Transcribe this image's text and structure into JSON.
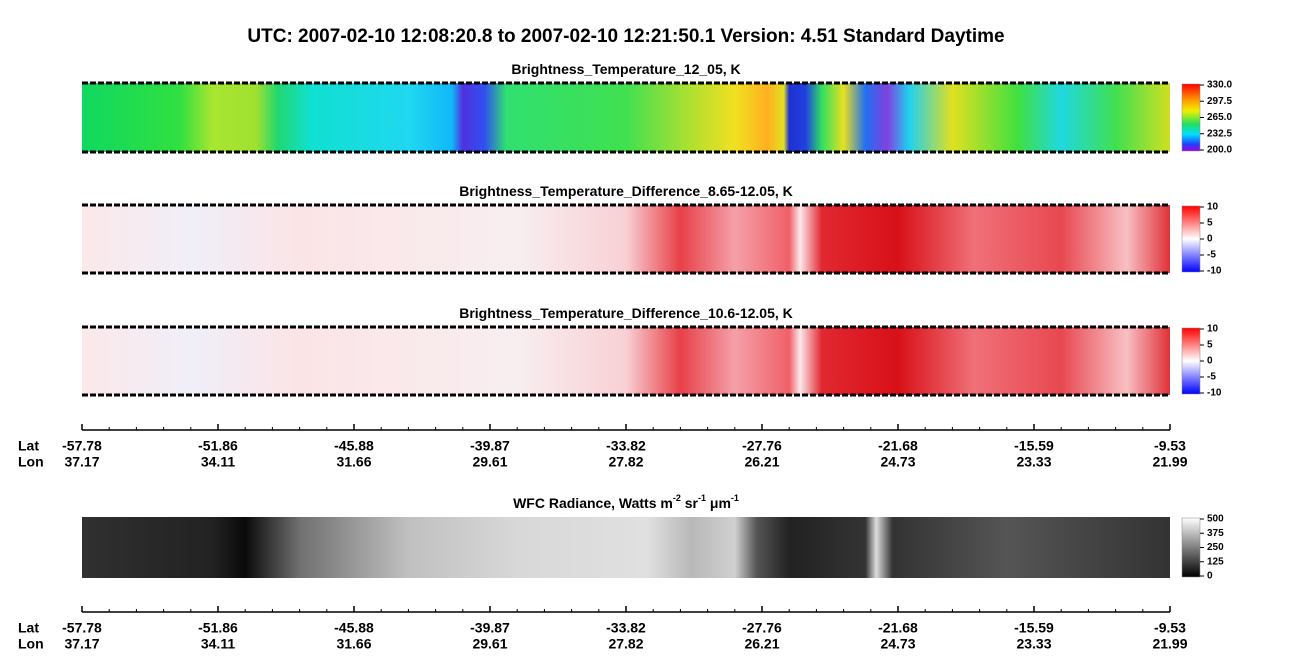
{
  "header": {
    "title": "UTC:  2007-02-10   12:08:20.8  to  2007-02-10   12:21:50.1    Version: 4.51  Standard Daytime"
  },
  "panels": [
    {
      "title": [
        "Brightness_Temperature_12_05, K"
      ],
      "colorbar_ticks": [
        "330.0",
        "297.5",
        "265.0",
        "232.5",
        "200.0"
      ]
    },
    {
      "title": [
        "Brightness_Temperature_Difference_8.65-12.05, K"
      ],
      "colorbar_ticks": [
        "10",
        "5",
        "0",
        "-5",
        "-10"
      ]
    },
    {
      "title": [
        "Brightness_Temperature_Difference_10.6-12.05, K"
      ],
      "colorbar_ticks": [
        "10",
        "5",
        "0",
        "-5",
        "-10"
      ]
    },
    {
      "title": [
        "WFC Radiance, Watts m",
        "-2",
        " sr",
        "-1",
        " μm",
        "-1"
      ],
      "colorbar_ticks": [
        "500",
        "375",
        "250",
        "125",
        "0"
      ]
    }
  ],
  "axes": [
    {
      "lat_label": "Lat",
      "lon_label": "Lon",
      "lat": [
        "-57.78",
        "-51.86",
        "-45.88",
        "-39.87",
        "-33.82",
        "-27.76",
        "-21.68",
        "-15.59",
        "-9.53"
      ],
      "lon": [
        "37.17",
        "34.11",
        "31.66",
        "29.61",
        "27.82",
        "26.21",
        "24.73",
        "23.33",
        "21.99"
      ]
    },
    {
      "lat_label": "Lat",
      "lon_label": "Lon",
      "lat": [
        "-57.78",
        "-51.86",
        "-45.88",
        "-39.87",
        "-33.82",
        "-27.76",
        "-21.68",
        "-15.59",
        "-9.53"
      ],
      "lon": [
        "37.17",
        "34.11",
        "31.66",
        "29.61",
        "27.82",
        "26.21",
        "24.73",
        "23.33",
        "21.99"
      ]
    }
  ]
}
